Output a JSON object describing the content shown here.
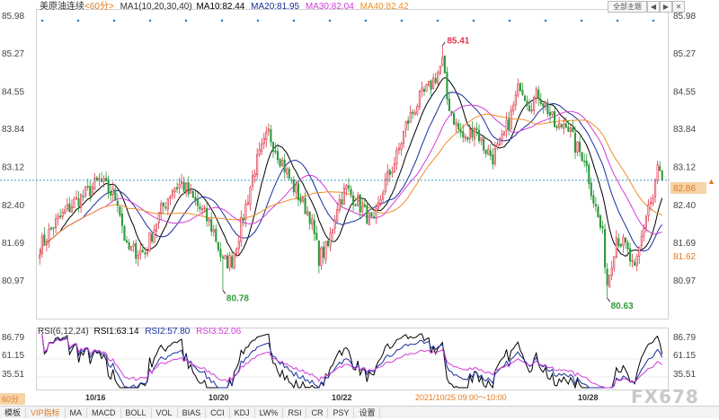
{
  "header": {
    "symbol": "美原油连续",
    "period": "<60分>",
    "ma_title": "MA1(10,20,30,40)",
    "ma10": "MA10:82.44",
    "ma20": "MA20:81.95",
    "ma30": "MA30:82.04",
    "ma40": "MA40:82.42"
  },
  "buttons": {
    "theme": "全部主题",
    "prev": "◀",
    "next": "▶",
    "close": "✕"
  },
  "price_axis_labels": [
    "85.98",
    "85.27",
    "84.55",
    "83.84",
    "83.12",
    "82.40",
    "81.69",
    "80.97"
  ],
  "current_price_label": "82.86",
  "ma_price_label": "81.62",
  "annotations": {
    "high": "85.41",
    "low1": "80.78",
    "low2": "80.63"
  },
  "rsi_header": {
    "title": "RSI(6,12,24)",
    "rsi1": "RSI1:63.14",
    "rsi2": "RSI2:57.80",
    "rsi3": "RSI3:52.06"
  },
  "rsi_axis_labels": [
    "86.79",
    "61.15",
    "35.51"
  ],
  "period_tag": "60分",
  "date_labels": [
    "10/16",
    "10/20",
    "10/22",
    "10/28"
  ],
  "crosshair_label": "2021/10/25 09:00～10:00",
  "toolbar": [
    "模板",
    "VIP指标",
    "MA",
    "MACD",
    "BOLL",
    "VOL",
    "BIAS",
    "CCI",
    "KDJ",
    "LW%",
    "RSI",
    "CR",
    "PSY",
    "设置"
  ],
  "watermark": "FX678",
  "colors": {
    "up": "#e0364a",
    "down": "#2e9a3a",
    "ma10": "#000000",
    "ma20": "#1a2f9c",
    "ma30": "#d23bd8",
    "ma40": "#ef8d2a",
    "current_line": "#3a9fc0",
    "price_tag_bg": "#f6d3a8",
    "price_tag_text": "#e07a1f"
  },
  "chart_data": {
    "type": "candlestick",
    "interval": "60分",
    "ylim": [
      80.6,
      86.0
    ],
    "rsi_ylim": [
      25,
      95
    ],
    "current_price": 82.86,
    "ma_marker_price": 81.62,
    "high": {
      "label": "85.41",
      "value": 85.41
    },
    "lows": [
      {
        "label": "80.78",
        "value": 80.78
      },
      {
        "label": "80.63",
        "value": 80.63
      }
    ],
    "anchors": [
      [
        0,
        81.6
      ],
      [
        6,
        82.0
      ],
      [
        14,
        82.4
      ],
      [
        20,
        82.6
      ],
      [
        26,
        82.85
      ],
      [
        34,
        82.5
      ],
      [
        38,
        81.55
      ],
      [
        46,
        81.5
      ],
      [
        52,
        82.2
      ],
      [
        58,
        82.7
      ],
      [
        62,
        82.8
      ],
      [
        66,
        82.55
      ],
      [
        72,
        82.2
      ],
      [
        76,
        81.9
      ],
      [
        80,
        81.3
      ],
      [
        84,
        81.35
      ],
      [
        88,
        82.0
      ],
      [
        94,
        83.1
      ],
      [
        100,
        83.75
      ],
      [
        106,
        83.2
      ],
      [
        110,
        82.8
      ],
      [
        114,
        82.5
      ],
      [
        118,
        82.2
      ],
      [
        122,
        81.4
      ],
      [
        126,
        81.6
      ],
      [
        130,
        82.4
      ],
      [
        134,
        82.7
      ],
      [
        138,
        82.5
      ],
      [
        142,
        82.25
      ],
      [
        146,
        82.0
      ],
      [
        150,
        82.7
      ],
      [
        156,
        83.3
      ],
      [
        160,
        83.9
      ],
      [
        166,
        84.4
      ],
      [
        170,
        84.6
      ],
      [
        174,
        84.9
      ],
      [
        176,
        85.1
      ],
      [
        178,
        84.4
      ],
      [
        182,
        83.9
      ],
      [
        186,
        83.6
      ],
      [
        190,
        83.9
      ],
      [
        194,
        83.5
      ],
      [
        198,
        83.3
      ],
      [
        202,
        83.6
      ],
      [
        206,
        84.1
      ],
      [
        210,
        84.7
      ],
      [
        214,
        84.3
      ],
      [
        218,
        84.5
      ],
      [
        222,
        84.2
      ],
      [
        226,
        83.8
      ],
      [
        230,
        84.0
      ],
      [
        234,
        83.5
      ],
      [
        238,
        83.3
      ],
      [
        242,
        82.5
      ],
      [
        246,
        81.8
      ],
      [
        248,
        80.9
      ],
      [
        252,
        81.8
      ],
      [
        256,
        81.6
      ],
      [
        260,
        81.1
      ],
      [
        264,
        82.0
      ],
      [
        266,
        82.4
      ],
      [
        268,
        82.5
      ],
      [
        270,
        83.1
      ],
      [
        272,
        82.9
      ]
    ],
    "ma_periods": [
      10,
      20,
      30,
      40
    ],
    "rsi_periods": [
      6,
      12,
      24
    ]
  }
}
